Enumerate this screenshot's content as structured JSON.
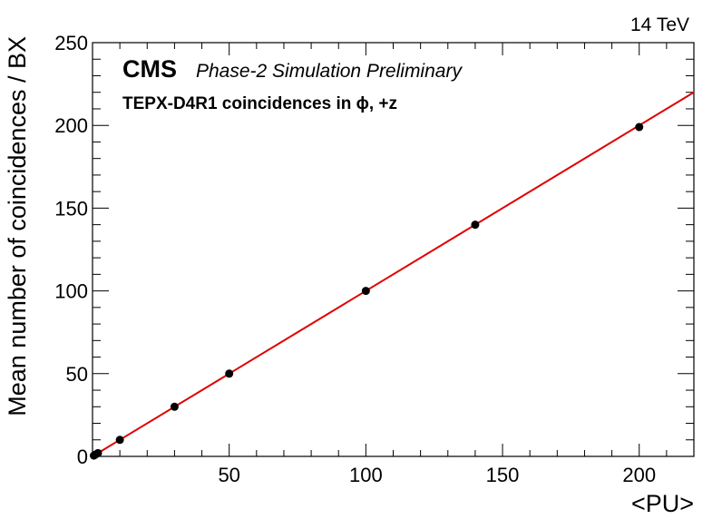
{
  "chart_data": {
    "type": "scatter",
    "experiment": "CMS",
    "status": "Phase-2 Simulation Preliminary",
    "energy": "14 TeV",
    "title": "TEPX-D4R1 coincidences in ϕ, +z",
    "xlabel": "<PU>",
    "ylabel": "Mean number of coincidences / BX",
    "xlim": [
      0,
      220
    ],
    "ylim": [
      0,
      250
    ],
    "x_ticks": [
      50,
      100,
      150,
      200
    ],
    "y_ticks": [
      0,
      50,
      100,
      150,
      200,
      250
    ],
    "grid": false,
    "series": [
      {
        "marker": "circle",
        "color": "#000000",
        "points": [
          {
            "x": 0.5,
            "y": 0.5
          },
          {
            "x": 1,
            "y": 1
          },
          {
            "x": 2,
            "y": 2
          },
          {
            "x": 10,
            "y": 10
          },
          {
            "x": 30,
            "y": 30
          },
          {
            "x": 50,
            "y": 50
          },
          {
            "x": 100,
            "y": 100
          },
          {
            "x": 140,
            "y": 140
          },
          {
            "x": 200,
            "y": 199
          }
        ]
      }
    ],
    "fit": {
      "type": "line",
      "color": "#e00000",
      "slope": 1.0,
      "intercept": 0,
      "x_range": [
        0,
        220
      ]
    }
  }
}
